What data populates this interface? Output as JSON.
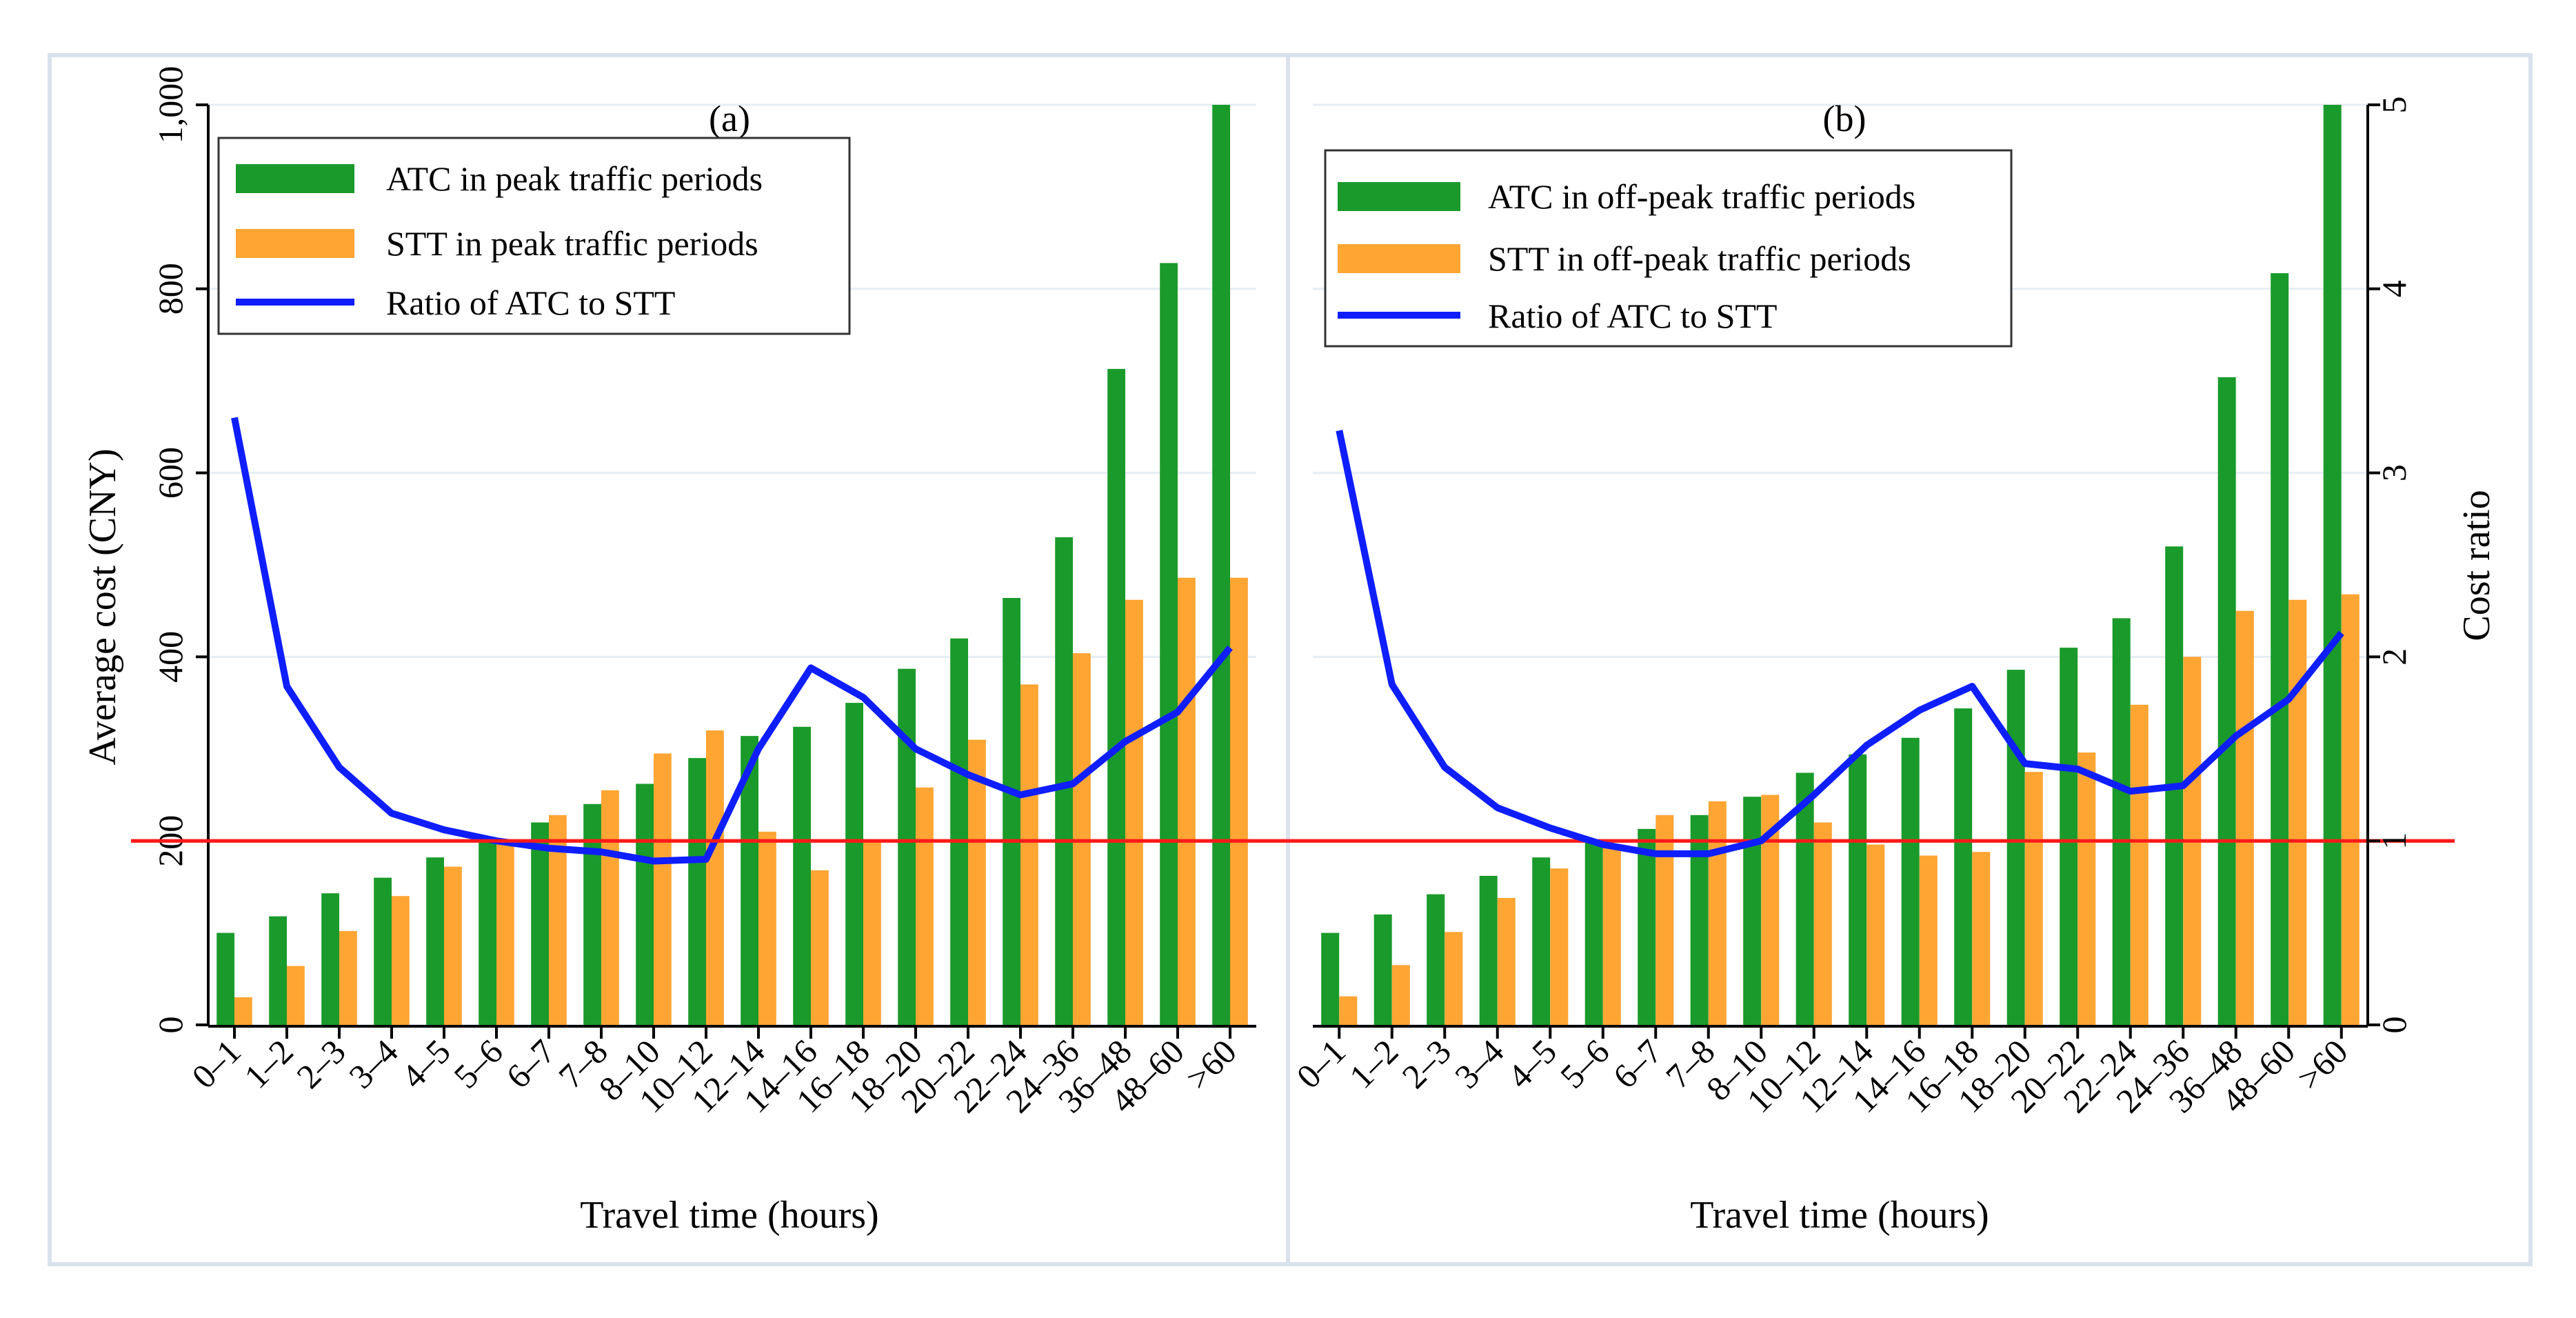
{
  "chart_data": [
    {
      "panel_label": "(a)",
      "type": "bar",
      "categories": [
        "0–1",
        "1–2",
        "2–3",
        "3–4",
        "4–5",
        "5–6",
        "6–7",
        "7–8",
        "8–10",
        "10–12",
        "12–14",
        "14–16",
        "16–18",
        "18–20",
        "20–22",
        "22–24",
        "24–36",
        "36–48",
        "48–60",
        ">60"
      ],
      "series": [
        {
          "name": "ATC in peak traffic periods",
          "kind": "bar",
          "color": "#1a9a2a",
          "axis": "left",
          "values": [
            100,
            118,
            143,
            160,
            182,
            200,
            220,
            240,
            262,
            290,
            314,
            324,
            350,
            387,
            420,
            464,
            530,
            713,
            828,
            1000
          ]
        },
        {
          "name": "STT in peak traffic periods",
          "kind": "bar",
          "color": "#ffa533",
          "axis": "left",
          "values": [
            30,
            64,
            102,
            140,
            172,
            200,
            228,
            255,
            295,
            320,
            210,
            168,
            200,
            258,
            310,
            370,
            404,
            462,
            486,
            486
          ]
        },
        {
          "name": "Ratio of ATC to STT",
          "kind": "line",
          "color": "#0f1eff",
          "axis": "right",
          "values": [
            3.3,
            1.84,
            1.4,
            1.15,
            1.06,
            1.0,
            0.96,
            0.94,
            0.89,
            0.9,
            1.5,
            1.94,
            1.78,
            1.5,
            1.36,
            1.25,
            1.31,
            1.54,
            1.7,
            2.05
          ]
        }
      ],
      "xlabel": "Travel time (hours)",
      "ylabel": "Average cost (CNY)",
      "ylim": [
        0,
        1000
      ],
      "yticks": [
        "0",
        "200",
        "400",
        "600",
        "800",
        "1,000"
      ],
      "y2label": "",
      "y2lim": [
        0,
        5
      ],
      "y2ticks": [],
      "reference_line": {
        "axis": "right",
        "value": 1,
        "color": "#ff1a1a"
      },
      "legend_position": "top-left"
    },
    {
      "panel_label": "(b)",
      "type": "bar",
      "categories": [
        "0–1",
        "1–2",
        "2–3",
        "3–4",
        "4–5",
        "5–6",
        "6–7",
        "7–8",
        "8–10",
        "10–12",
        "12–14",
        "14–16",
        "16–18",
        "18–20",
        "20–22",
        "22–24",
        "24–36",
        "36–48",
        "48–60",
        ">60"
      ],
      "series": [
        {
          "name": "ATC in off-peak traffic periods",
          "kind": "bar",
          "color": "#1a9a2a",
          "axis": "left",
          "values": [
            100,
            120,
            142,
            162,
            182,
            198,
            213,
            228,
            248,
            274,
            294,
            312,
            344,
            386,
            410,
            442,
            520,
            704,
            817,
            1000
          ]
        },
        {
          "name": "STT in off-peak traffic periods",
          "kind": "bar",
          "color": "#ffa533",
          "axis": "left",
          "values": [
            31,
            65,
            101,
            138,
            170,
            196,
            228,
            243,
            250,
            220,
            196,
            184,
            188,
            275,
            296,
            348,
            400,
            450,
            462,
            468
          ]
        },
        {
          "name": "Ratio of ATC to STT",
          "kind": "line",
          "color": "#0f1eff",
          "axis": "right",
          "values": [
            3.23,
            1.85,
            1.4,
            1.18,
            1.07,
            0.98,
            0.93,
            0.93,
            1.0,
            1.25,
            1.52,
            1.71,
            1.84,
            1.42,
            1.39,
            1.27,
            1.3,
            1.57,
            1.77,
            2.13
          ]
        }
      ],
      "xlabel": "Travel time (hours)",
      "ylabel": "",
      "ylim": [
        0,
        1000
      ],
      "yticks": [],
      "y2label": "Cost ratio",
      "y2lim": [
        0,
        5
      ],
      "y2ticks": [
        "0",
        "1",
        "2",
        "3",
        "4",
        "5"
      ],
      "reference_line": {
        "axis": "right",
        "value": 1,
        "color": "#ff1a1a"
      },
      "legend_position": "top-left"
    }
  ]
}
